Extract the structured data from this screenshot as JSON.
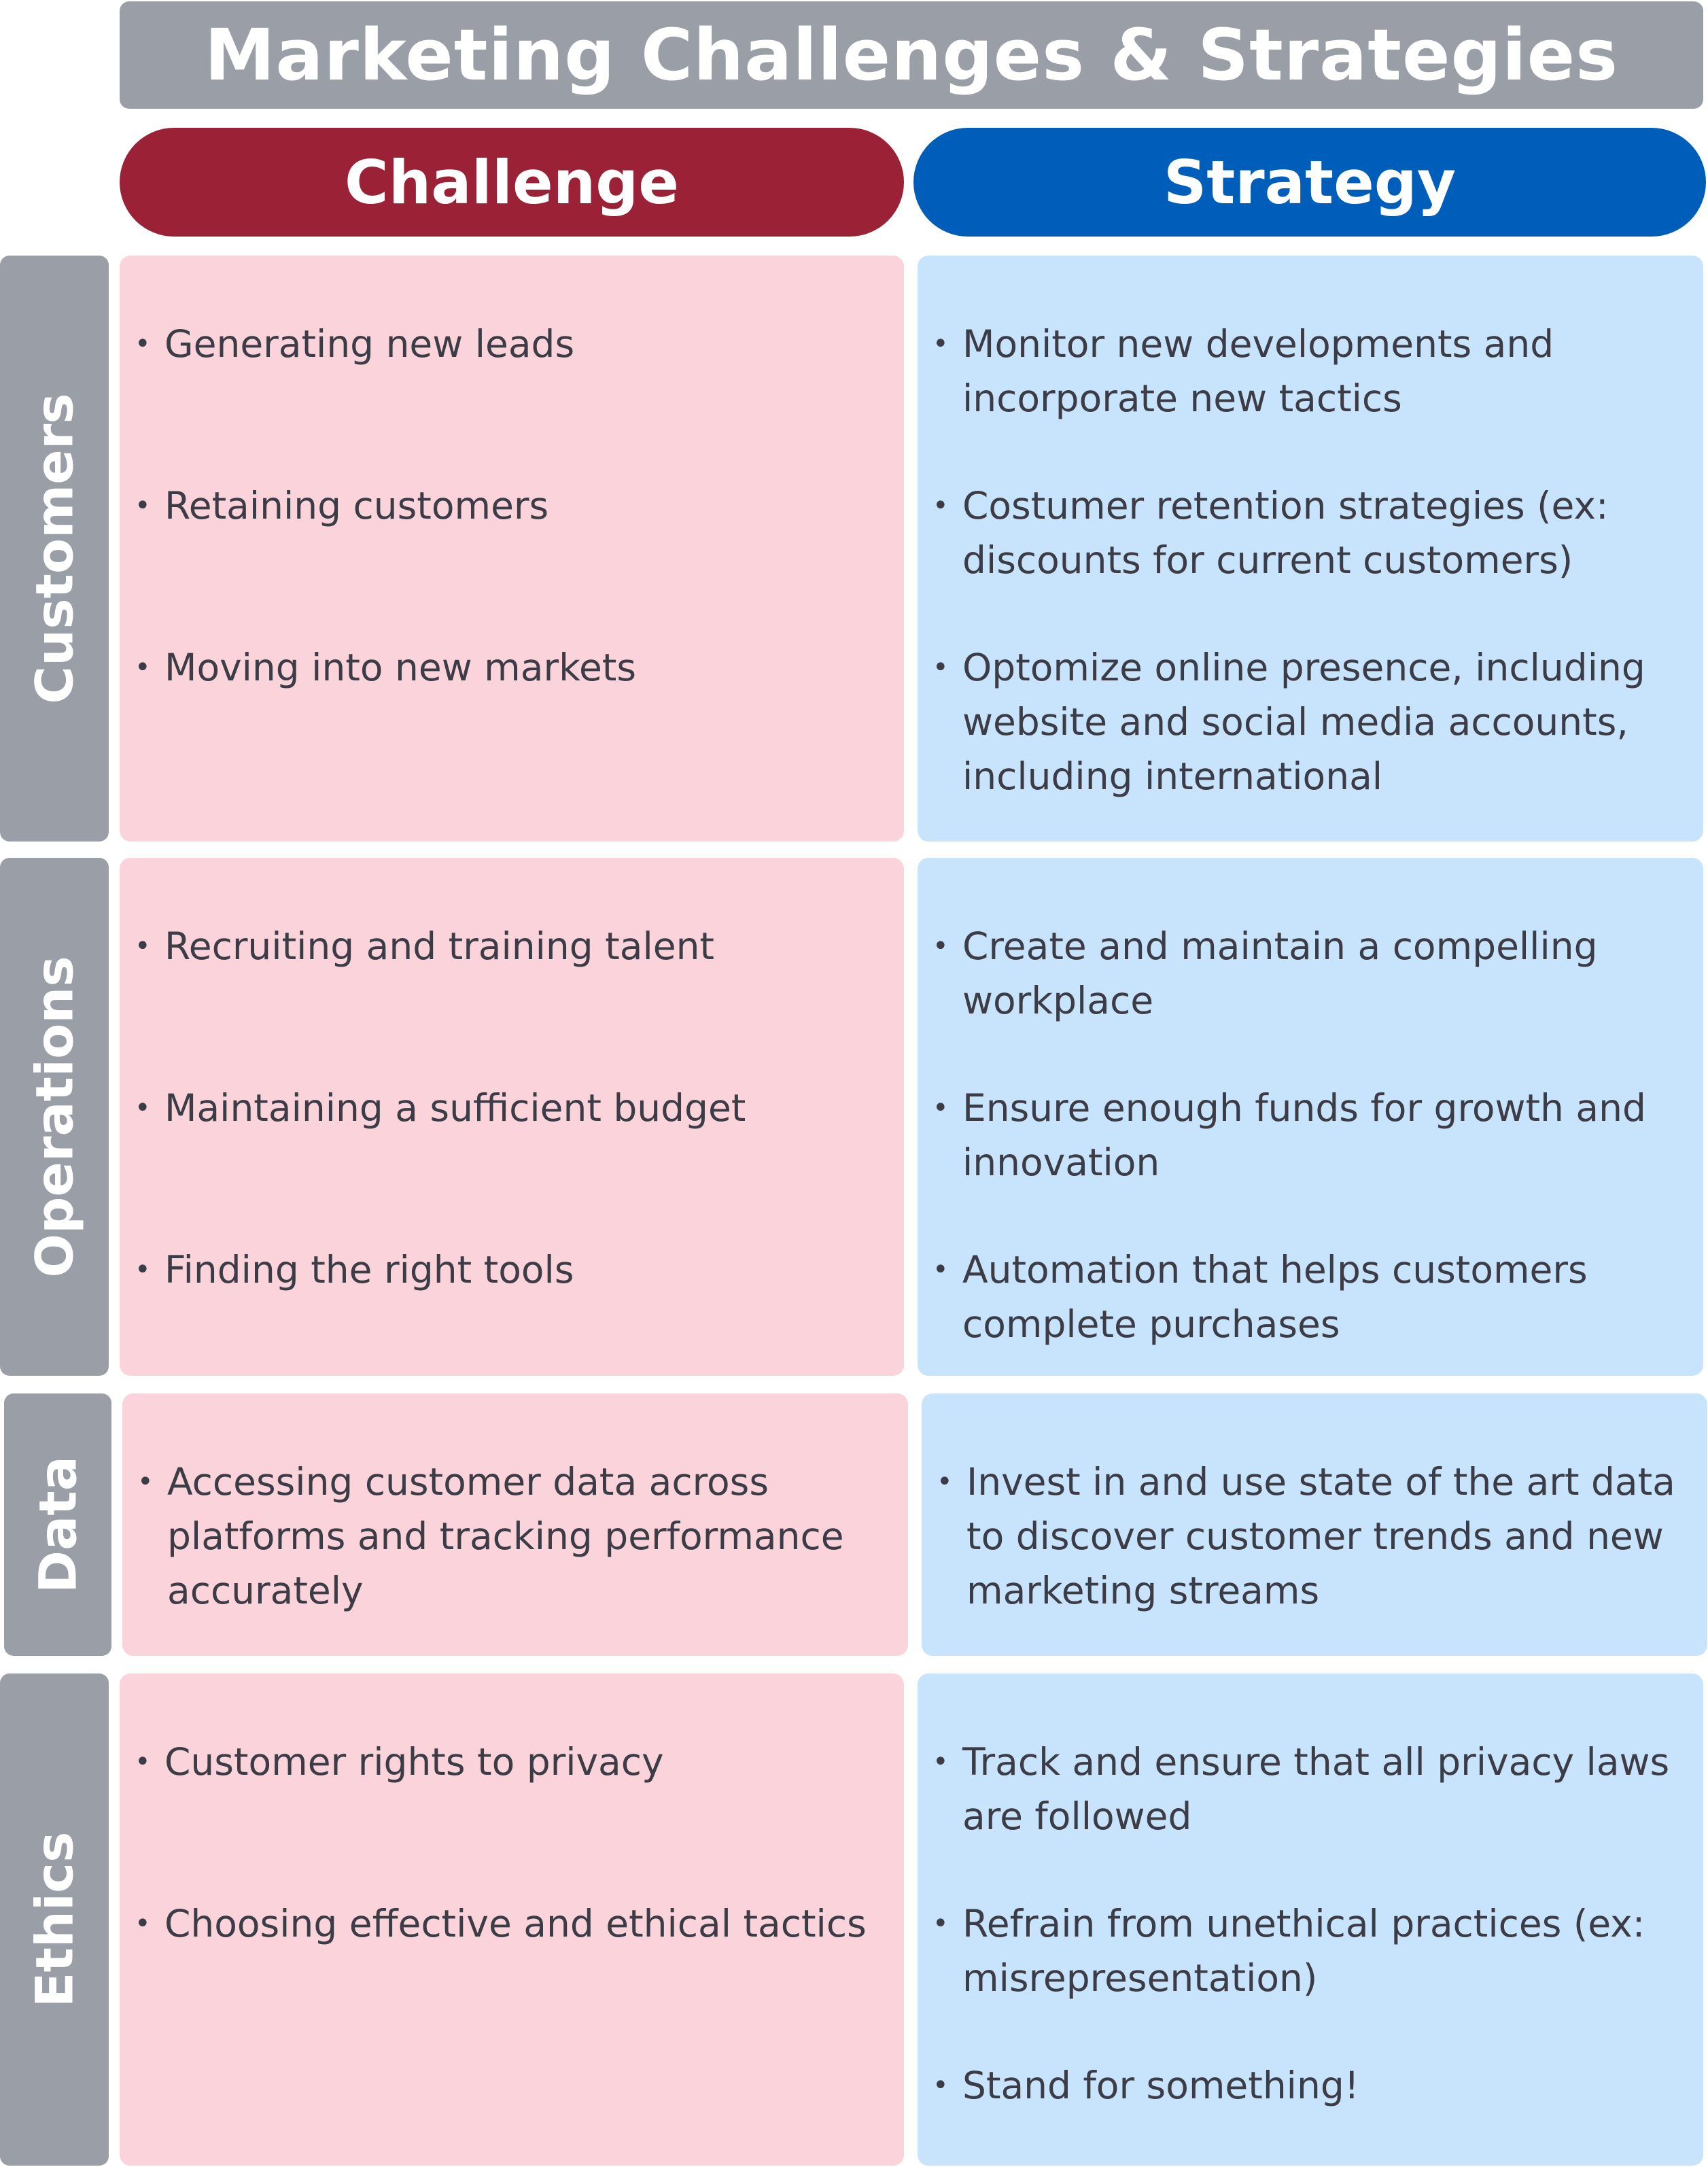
{
  "title": "Marketing Challenges & Strategies",
  "headers": {
    "challenge": "Challenge",
    "strategy": "Strategy"
  },
  "colors": {
    "title_bg": "#9a9ea7",
    "challenge_header": "#9b2236",
    "strategy_header": "#005ebb",
    "row_label_bg": "#9a9ea7",
    "challenge_cell": "#fad4da",
    "strategy_cell": "#c8e4fc",
    "text": "#3c3c46"
  },
  "rows": [
    {
      "label": "Customers",
      "challenges": [
        "Generating new leads",
        "Retaining customers",
        "Moving into new markets"
      ],
      "strategies": [
        "Monitor new developments and incorporate new tactics",
        "Costumer retention strategies (ex: discounts for current customers)",
        "Optomize online presence, including website and social media accounts, including international"
      ]
    },
    {
      "label": "Operations",
      "challenges": [
        "Recruiting and training talent",
        "Maintaining a sufficient budget",
        "Finding the right tools"
      ],
      "strategies": [
        "Create and maintain a compelling workplace",
        "Ensure enough funds for growth and innovation",
        "Automation that helps customers complete purchases"
      ]
    },
    {
      "label": "Data",
      "challenges": [
        "Accessing customer data across platforms and tracking performance accurately"
      ],
      "strategies": [
        "Invest in and use state of the art data to discover customer trends and new marketing streams"
      ]
    },
    {
      "label": "Ethics",
      "challenges": [
        "Customer rights to privacy",
        "Choosing effective and ethical tactics"
      ],
      "strategies": [
        "Track and ensure that all privacy laws are followed",
        "Refrain from unethical practices (ex: misrepresentation)",
        "Stand for something!"
      ]
    }
  ]
}
